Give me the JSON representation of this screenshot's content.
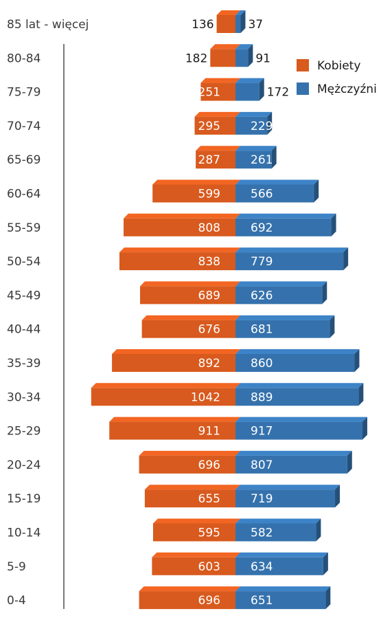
{
  "chart_data": {
    "type": "bar",
    "orientation": "horizontal",
    "style": "population-pyramid-3d",
    "categories": [
      "85 lat - więcej",
      "80-84",
      "75-79",
      "70-74",
      "65-69",
      "60-64",
      "55-59",
      "50-54",
      "45-49",
      "40-44",
      "35-39",
      "30-34",
      "25-29",
      "20-24",
      "15-19",
      "10-14",
      "5-9",
      "0-4"
    ],
    "series": [
      {
        "name": "Kobiety",
        "color": "#d85a1e",
        "values": [
          136,
          182,
          251,
          295,
          287,
          599,
          808,
          838,
          689,
          676,
          892,
          1042,
          911,
          696,
          655,
          595,
          603,
          696
        ]
      },
      {
        "name": "Mężczyźni",
        "color": "#3572ad",
        "values": [
          37,
          91,
          172,
          229,
          261,
          566,
          692,
          779,
          626,
          681,
          860,
          889,
          917,
          807,
          719,
          582,
          634,
          651
        ]
      }
    ],
    "legend_position": "top-right",
    "grid": false
  }
}
